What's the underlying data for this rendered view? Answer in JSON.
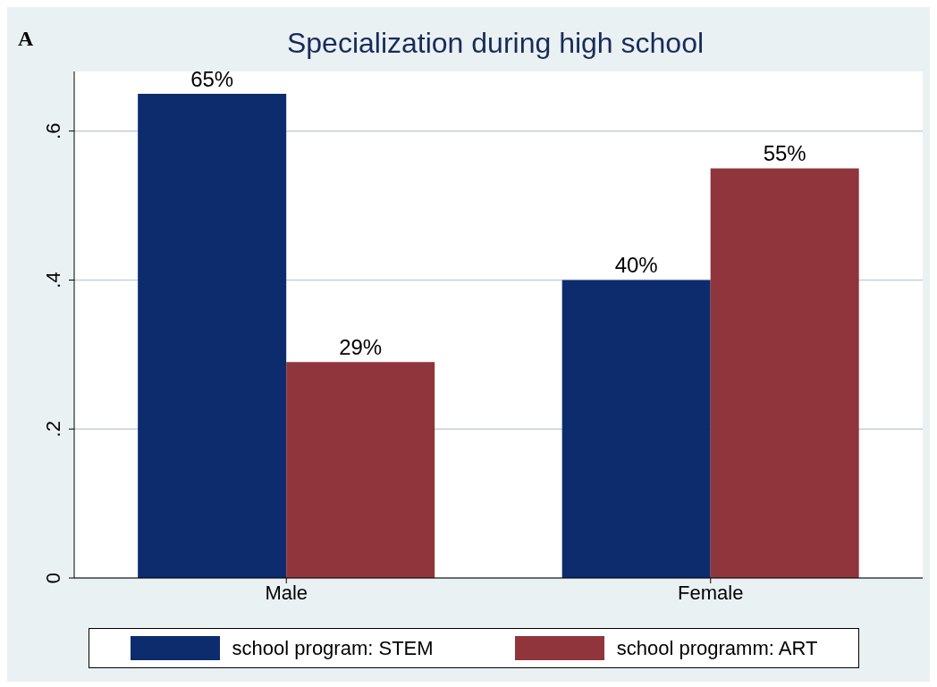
{
  "chart_data": {
    "type": "bar",
    "title": "Specialization during high school",
    "annotations": [
      "A"
    ],
    "categories": [
      "Male",
      "Female"
    ],
    "series": [
      {
        "name": "school program: STEM",
        "color": "#0c2c6e",
        "values": [
          0.65,
          0.4
        ],
        "value_labels": [
          "65%",
          "40%"
        ]
      },
      {
        "name": "school programm: ART",
        "color": "#90353b",
        "values": [
          0.29,
          0.55
        ],
        "value_labels": [
          "29%",
          "55%"
        ]
      }
    ],
    "ylim": [
      0,
      0.68
    ],
    "yticks": [
      0,
      {
        "value": 0.2,
        "label": ".2"
      },
      {
        "value": 0.4,
        "label": ".4"
      },
      {
        "value": 0.6,
        "label": ".6"
      }
    ],
    "grid": "y",
    "legend": "bottom"
  }
}
